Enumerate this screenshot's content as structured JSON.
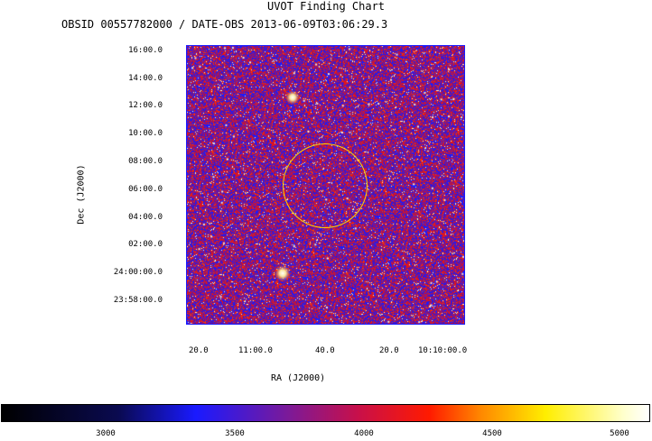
{
  "chart_data": {
    "type": "heatmap",
    "title": "UVOT Finding Chart",
    "subtitle": "OBSID 00557782000 / DATE-OBS 2013-06-09T03:06:29.3",
    "xlabel": "RA (J2000)",
    "ylabel": "Dec (J2000)",
    "x_ticks": [
      "20.0",
      "11:00.0",
      "40.0",
      "20.0",
      "10:10:00.0"
    ],
    "y_ticks": [
      "16:00.0",
      "14:00.0",
      "12:00.0",
      "10:00.0",
      "08:00.0",
      "06:00.0",
      "04:00.0",
      "02:00.0",
      "24:00:00.0",
      "23:58:00.0"
    ],
    "colorbar": {
      "ticks": [
        "3000",
        "3500",
        "4000",
        "4500",
        "5000"
      ],
      "range": [
        2600,
        5100
      ],
      "colors": [
        "#000000",
        "#1a1aff",
        "#c8104a",
        "#ff1a00",
        "#ffee00",
        "#ffffff"
      ]
    },
    "background_color": "#3a0a6e",
    "region_circle_color": "#ffd400",
    "bright_sources": [
      {
        "name": "star-upper"
      },
      {
        "name": "star-lower"
      }
    ]
  }
}
